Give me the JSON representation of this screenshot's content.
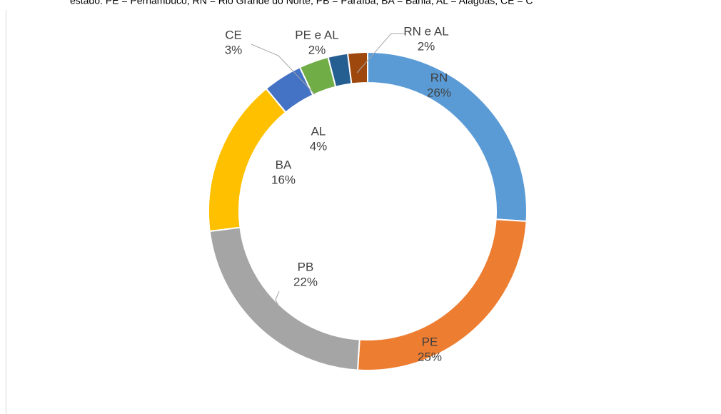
{
  "chart_data": {
    "type": "donut",
    "caption": "estado: PE = Pernambuco, RN = Rio Grande do Norte, PB = Paraíba, BA = Bahia, AL = Alagoas, CE = C",
    "categories": [
      "RN",
      "PE",
      "PB",
      "BA",
      "AL",
      "CE",
      "PE e AL",
      "RN e AL"
    ],
    "values": [
      26,
      25,
      22,
      16,
      4,
      3,
      2,
      2
    ],
    "value_labels": [
      "26%",
      "25%",
      "22%",
      "16%",
      "4%",
      "3%",
      "2%",
      "2%"
    ],
    "colors": [
      "#5b9bd5",
      "#ed7d31",
      "#a5a5a5",
      "#ffc000",
      "#4472c4",
      "#70ad47",
      "#255e91",
      "#9e480e"
    ]
  }
}
